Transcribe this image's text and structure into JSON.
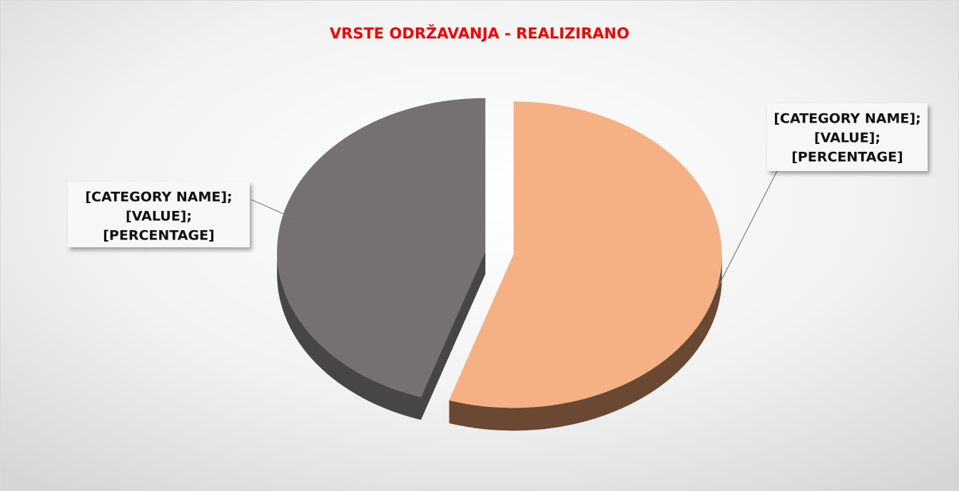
{
  "chart_data": {
    "type": "pie3d",
    "title": "VRSTE ODRŽAVANJA - REALIZIRANO",
    "categories": [
      null,
      null
    ],
    "values": [
      55,
      45
    ],
    "colors": [
      "#f5b183",
      "#767171"
    ],
    "side_colors": [
      "#6b4832",
      "#474545"
    ],
    "start_angle": -90,
    "labels": [
      [
        "[CATEGORY NAME];",
        "[VALUE];",
        "[PERCENTAGE]"
      ],
      [
        "[CATEGORY NAME];",
        "[VALUE];",
        "[PERCENTAGE]"
      ]
    ]
  }
}
